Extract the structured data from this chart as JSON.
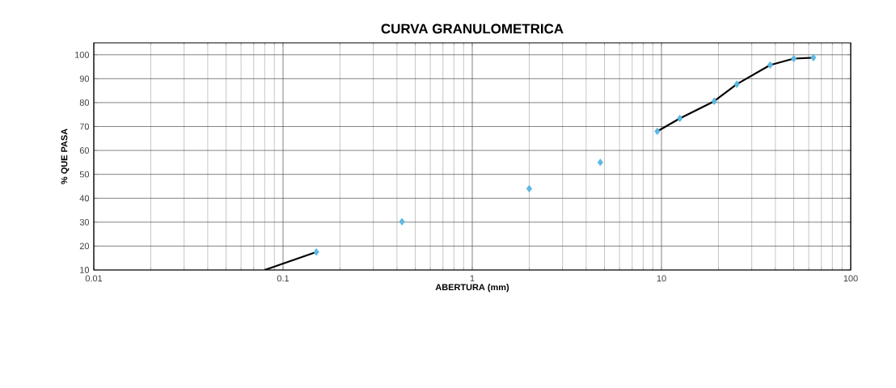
{
  "chart_data": {
    "type": "scatter",
    "title": "CURVA GRANULOMETRICA",
    "xlabel": "ABERTURA (mm)",
    "ylabel": "% QUE PASA",
    "log": "x",
    "grid": true,
    "xlim": [
      0.01,
      100
    ],
    "ylim": [
      10,
      105
    ],
    "xticks": [
      0.01,
      0.1,
      1,
      10,
      100
    ],
    "yticks": [
      10,
      20,
      30,
      40,
      50,
      60,
      70,
      80,
      90,
      100
    ],
    "series": [
      {
        "type": "line",
        "color": "#000000",
        "marker": "none",
        "line_style": "solid",
        "x": [
          0.08,
          0.15,
          0.425,
          2.0,
          4.75,
          9.5,
          12.5,
          19,
          25,
          37.5,
          50,
          63.5
        ],
        "values": [
          10,
          17.5,
          null,
          null,
          null,
          68,
          73.4,
          80.6,
          87.7,
          95.7,
          98.4,
          98.8
        ]
      },
      {
        "color": "#5bb8e0",
        "marker": "diamond",
        "x": [
          0.15,
          0.425,
          2.0,
          4.75,
          9.5,
          12.5,
          19,
          25,
          37.5,
          50,
          63.5
        ],
        "values": [
          17.5,
          30.2,
          44,
          55,
          68,
          73.4,
          80.6,
          87.7,
          95.7,
          98.4,
          98.8
        ]
      }
    ]
  }
}
